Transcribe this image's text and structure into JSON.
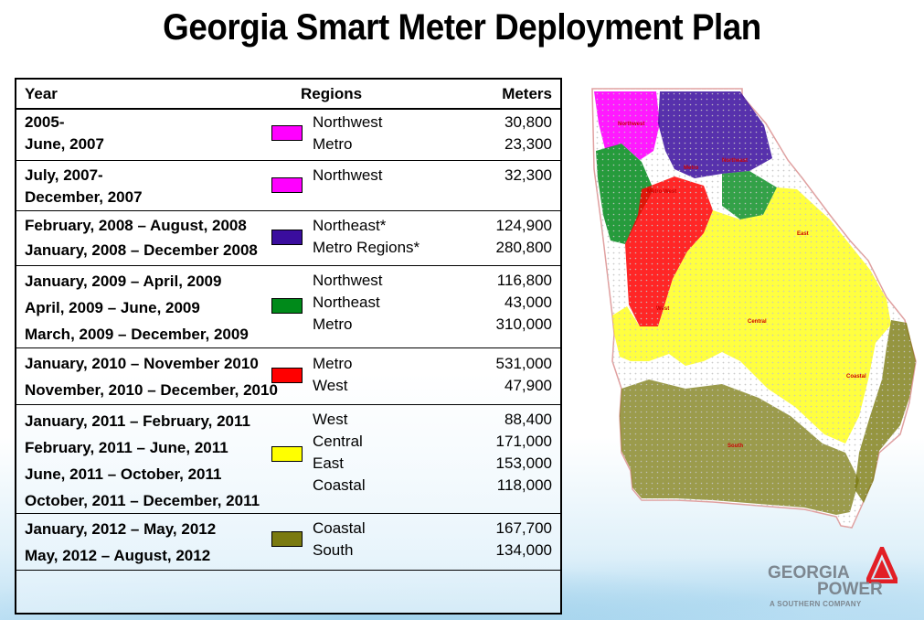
{
  "title": "Georgia Smart Meter Deployment Plan",
  "table": {
    "headers": {
      "year": "Year",
      "regions": "Regions",
      "meters": "Meters"
    },
    "rows": [
      {
        "years": [
          "2005-",
          "June, 2007"
        ],
        "regions": [
          "Northwest",
          "Metro"
        ],
        "meters": [
          "30,800",
          "23,300"
        ],
        "color": "#ff00ff"
      },
      {
        "years": [
          "July, 2007-",
          "December, 2007"
        ],
        "regions": [
          "Northwest"
        ],
        "meters": [
          "32,300"
        ],
        "color": "#ff00ff"
      },
      {
        "years": [
          "February, 2008 – August, 2008",
          "January, 2008 – December 2008"
        ],
        "regions": [
          "Northeast*",
          "Metro Regions*"
        ],
        "meters": [
          "124,900",
          "280,800"
        ],
        "color": "#3a0d9e"
      },
      {
        "years": [
          "January, 2009 – April, 2009",
          "April, 2009 – June, 2009",
          "March, 2009 – December, 2009"
        ],
        "regions": [
          "Northwest",
          "Northeast",
          "Metro"
        ],
        "meters": [
          "116,800",
          "43,000",
          "310,000"
        ],
        "color": "#008a1a"
      },
      {
        "years": [
          "January, 2010 – November 2010",
          "November, 2010 – December, 2010"
        ],
        "regions": [
          "Metro",
          "West"
        ],
        "meters": [
          "531,000",
          "47,900"
        ],
        "color": "#ff0000"
      },
      {
        "years": [
          "January, 2011 – February, 2011",
          "February, 2011 – June, 2011",
          "June, 2011 – October, 2011",
          "October, 2011 – December, 2011"
        ],
        "regions": [
          "West",
          "Central",
          "East",
          "Coastal"
        ],
        "meters": [
          "88,400",
          "171,000",
          "153,000",
          "118,000"
        ],
        "color": "#ffff00"
      },
      {
        "years": [
          "January, 2012 – May, 2012",
          "May, 2012 – August, 2012"
        ],
        "regions": [
          "Coastal",
          "South"
        ],
        "meters": [
          "167,700",
          "134,000"
        ],
        "color": "#7a7a10"
      }
    ]
  },
  "map": {
    "labels": {
      "northwest": "Northwest",
      "metro_west": "Metro West",
      "metro": "Metro",
      "northeast": "Northeast",
      "east": "East",
      "west": "West",
      "central": "Central",
      "coastal": "Coastal",
      "south": "South"
    }
  },
  "logo": {
    "line1": "GEORGIA",
    "line2": "POWER",
    "tagline": "A SOUTHERN COMPANY"
  }
}
